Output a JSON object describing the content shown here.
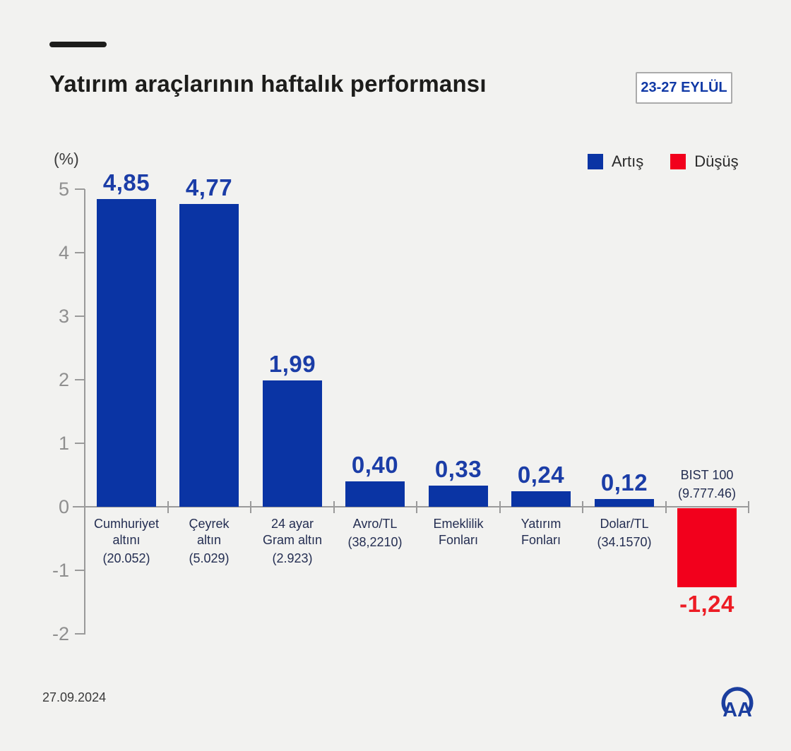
{
  "header": {
    "title": "Yatırım araçlarının haftalık performansı",
    "date_badge": "23-27 EYLÜL"
  },
  "legend": [
    {
      "label": "Artış",
      "color": "#0a34a4"
    },
    {
      "label": "Düşüş",
      "color": "#f2001c"
    }
  ],
  "footer": {
    "date": "27.09.2024",
    "logo": "aa-anadolu-agency-logo"
  },
  "chart_data": {
    "type": "bar",
    "title": "Yatırım araçlarının haftalık performansı",
    "period": "23-27 EYLÜL",
    "unit_label": "(%)",
    "ylim": [
      -2,
      5
    ],
    "yticks": [
      5,
      4,
      3,
      2,
      1,
      0,
      -1,
      -2
    ],
    "grid": false,
    "legend_position": "top-right",
    "colors": {
      "up": "#0a34a4",
      "down": "#f2001c",
      "up_label": "#1b3da7",
      "down_label": "#ed1c24"
    },
    "bars": [
      {
        "name": [
          "Cumhuriyet",
          "altını"
        ],
        "detail": "(20.052)",
        "value": 4.85,
        "value_label": "4,85",
        "direction": "up"
      },
      {
        "name": [
          "Çeyrek",
          "altın"
        ],
        "detail": "(5.029)",
        "value": 4.77,
        "value_label": "4,77",
        "direction": "up"
      },
      {
        "name": [
          "24 ayar",
          "Gram altın"
        ],
        "detail": "(2.923)",
        "value": 1.99,
        "value_label": "1,99",
        "direction": "up"
      },
      {
        "name": [
          "Avro/TL"
        ],
        "detail": "(38,2210)",
        "value": 0.4,
        "value_label": "0,40",
        "direction": "up"
      },
      {
        "name": [
          "Emeklilik",
          "Fonları"
        ],
        "detail": "",
        "value": 0.33,
        "value_label": "0,33",
        "direction": "up"
      },
      {
        "name": [
          "Yatırım",
          "Fonları"
        ],
        "detail": "",
        "value": 0.24,
        "value_label": "0,24",
        "direction": "up"
      },
      {
        "name": [
          "Dolar/TL"
        ],
        "detail": "(34.1570)",
        "value": 0.12,
        "value_label": "0,12",
        "direction": "up"
      },
      {
        "name": [
          "BIST 100"
        ],
        "detail": "(9.777.46)",
        "value": -1.24,
        "value_label": "-1,24",
        "direction": "down"
      }
    ]
  }
}
